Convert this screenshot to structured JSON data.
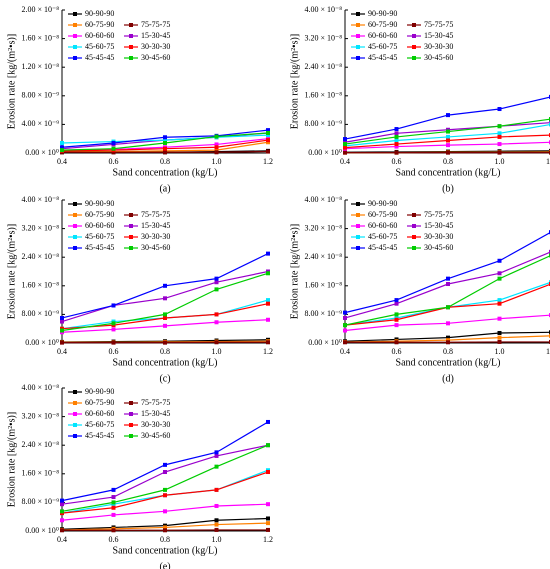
{
  "chart_data": [
    {
      "type": "line",
      "panel_label": "(a)",
      "xlabel": "Sand concentration (kg/L)",
      "ylabel": "Erosion rate [kg/(m²•s)]",
      "legend": "upper left",
      "x": [
        0.4,
        0.6,
        0.8,
        {
          "value": 1,
          "label": "1.0"
        },
        1.2
      ],
      "xlim": [
        0.4,
        1.2
      ],
      "xticks": [
        0.4,
        0.6,
        0.8,
        {
          "value": 1,
          "label": "1.0"
        },
        1.2
      ],
      "ylim": [
        0,
        2e-08
      ],
      "yticks": [
        {
          "value": 0,
          "label": "0.00 × 10⁰"
        },
        {
          "value": 4e-09,
          "label": "4.00 × 10⁻⁹"
        },
        {
          "value": 8e-09,
          "label": "8.00 × 10⁻⁹"
        },
        {
          "value": 1.2e-08,
          "label": "1.20 × 10⁻⁸"
        },
        {
          "value": 1.6e-08,
          "label": "1.60 × 10⁻⁸"
        },
        {
          "value": 2e-08,
          "label": "2.00 × 10⁻⁸"
        }
      ],
      "series": [
        {
          "name": "90-90-90",
          "color": "#000000",
          "values": [
            1e-10,
            1e-10,
            1e-10,
            2e-10,
            3e-10
          ]
        },
        {
          "name": "60-75-90",
          "color": "#ff8000",
          "values": [
            2e-10,
            2e-10,
            3e-10,
            4e-10,
            1.5e-09
          ]
        },
        {
          "name": "75-75-75",
          "color": "#800000",
          "values": [
            1e-10,
            1e-10,
            1e-10,
            1e-10,
            2e-10
          ]
        },
        {
          "name": "60-60-60",
          "color": "#ff00ff",
          "values": [
            4e-10,
            5e-10,
            8e-10,
            1.2e-09,
            2e-09
          ]
        },
        {
          "name": "15-30-45",
          "color": "#9900cc",
          "values": [
            6e-10,
            1.2e-09,
            1.8e-09,
            2.2e-09,
            2.8e-09
          ]
        },
        {
          "name": "45-60-75",
          "color": "#00e5ff",
          "values": [
            1.4e-09,
            1.6e-09,
            1.8e-09,
            2.2e-09,
            2.5e-09
          ]
        },
        {
          "name": "30-30-30",
          "color": "#ff0000",
          "values": [
            3e-10,
            4e-10,
            6e-10,
            8e-10,
            1.8e-09
          ]
        },
        {
          "name": "45-45-45",
          "color": "#0000ff",
          "values": [
            8e-10,
            1.4e-09,
            2.2e-09,
            2.4e-09,
            3.2e-09
          ]
        },
        {
          "name": "30-45-60",
          "color": "#00cc00",
          "values": [
            4e-10,
            6e-10,
            1.4e-09,
            2.3e-09,
            2.8e-09
          ]
        }
      ]
    },
    {
      "type": "line",
      "panel_label": "(b)",
      "xlabel": "Sand concentration (kg/L)",
      "ylabel": "Erosion rate [kg/(m²•s)]",
      "legend": "upper left",
      "x": [
        0.4,
        0.6,
        0.8,
        {
          "value": 1,
          "label": "1.0"
        },
        1.2
      ],
      "xlim": [
        0.4,
        1.2
      ],
      "xticks": [
        0.4,
        0.6,
        0.8,
        {
          "value": 1,
          "label": "1.0"
        },
        1.2
      ],
      "ylim": [
        0,
        4e-08
      ],
      "yticks": [
        {
          "value": 0,
          "label": "0.00 × 10⁰"
        },
        {
          "value": 8e-09,
          "label": "8.00 × 10⁻⁹"
        },
        {
          "value": 1.6e-08,
          "label": "1.60 × 10⁻⁸"
        },
        {
          "value": 2.4e-08,
          "label": "2.40 × 10⁻⁸"
        },
        {
          "value": 3.2e-08,
          "label": "3.20 × 10⁻⁸"
        },
        {
          "value": 4e-08,
          "label": "4.00 × 10⁻⁸"
        }
      ],
      "series": [
        {
          "name": "90-90-90",
          "color": "#000000",
          "values": [
            2e-10,
            3e-10,
            4e-10,
            5e-10,
            6e-10
          ]
        },
        {
          "name": "60-75-90",
          "color": "#ff8000",
          "values": [
            1e-10,
            1e-10,
            2e-10,
            2e-10,
            3e-10
          ]
        },
        {
          "name": "75-75-75",
          "color": "#800000",
          "values": [
            1e-10,
            1e-10,
            1e-10,
            1e-10,
            1e-10
          ]
        },
        {
          "name": "60-60-60",
          "color": "#ff00ff",
          "values": [
            1.2e-09,
            1.8e-09,
            2.2e-09,
            2.5e-09,
            3e-09
          ]
        },
        {
          "name": "15-30-45",
          "color": "#9900cc",
          "values": [
            3e-09,
            5.5e-09,
            6.5e-09,
            7.5e-09,
            8.5e-09
          ]
        },
        {
          "name": "45-60-75",
          "color": "#00e5ff",
          "values": [
            2e-09,
            3.5e-09,
            4.5e-09,
            5.5e-09,
            8e-09
          ]
        },
        {
          "name": "30-30-30",
          "color": "#ff0000",
          "values": [
            1.5e-09,
            2.5e-09,
            3.5e-09,
            4.5e-09,
            5e-09
          ]
        },
        {
          "name": "45-45-45",
          "color": "#0000ff",
          "values": [
            3.9e-09,
            6.7e-09,
            1.06e-08,
            1.23e-08,
            1.57e-08
          ]
        },
        {
          "name": "30-45-60",
          "color": "#00cc00",
          "values": [
            2.5e-09,
            4.5e-09,
            6e-09,
            7.5e-09,
            9.5e-09
          ]
        }
      ]
    },
    {
      "type": "line",
      "panel_label": "(c)",
      "xlabel": "Sand concentration (kg/L)",
      "ylabel": "Erosion rate [kg/(m²•s)]",
      "legend": "upper left",
      "x": [
        0.4,
        0.6,
        0.8,
        {
          "value": 1,
          "label": "1.0"
        },
        1.2
      ],
      "xlim": [
        0.4,
        1.2
      ],
      "xticks": [
        0.4,
        0.6,
        0.8,
        {
          "value": 1,
          "label": "1.0"
        },
        1.2
      ],
      "ylim": [
        0,
        4e-08
      ],
      "yticks": [
        {
          "value": 0,
          "label": "0.00 × 10⁰"
        },
        {
          "value": 8e-09,
          "label": "8.00 × 10⁻⁹"
        },
        {
          "value": 1.6e-08,
          "label": "1.60 × 10⁻⁸"
        },
        {
          "value": 2.4e-08,
          "label": "2.40 × 10⁻⁸"
        },
        {
          "value": 3.2e-08,
          "label": "3.20 × 10⁻⁸"
        },
        {
          "value": 4e-08,
          "label": "4.00 × 10⁻⁸"
        }
      ],
      "series": [
        {
          "name": "90-90-90",
          "color": "#000000",
          "values": [
            3e-10,
            4e-10,
            5e-10,
            7e-10,
            9e-10
          ]
        },
        {
          "name": "60-75-90",
          "color": "#ff8000",
          "values": [
            2e-10,
            2e-10,
            3e-10,
            4e-10,
            5e-10
          ]
        },
        {
          "name": "75-75-75",
          "color": "#800000",
          "values": [
            1e-10,
            1e-10,
            1e-10,
            2e-10,
            2e-10
          ]
        },
        {
          "name": "60-60-60",
          "color": "#ff00ff",
          "values": [
            3e-09,
            3.8e-09,
            4.8e-09,
            5.8e-09,
            6.5e-09
          ]
        },
        {
          "name": "15-30-45",
          "color": "#9900cc",
          "values": [
            6e-09,
            1.05e-08,
            1.25e-08,
            1.7e-08,
            2e-08
          ]
        },
        {
          "name": "45-60-75",
          "color": "#00e5ff",
          "values": [
            4e-09,
            6e-09,
            7e-09,
            8e-09,
            1.2e-08
          ]
        },
        {
          "name": "30-30-30",
          "color": "#ff0000",
          "values": [
            4e-09,
            5e-09,
            7e-09,
            8e-09,
            1.1e-08
          ]
        },
        {
          "name": "45-45-45",
          "color": "#0000ff",
          "values": [
            7e-09,
            1.05e-08,
            1.6e-08,
            1.8e-08,
            2.5e-08
          ]
        },
        {
          "name": "30-45-60",
          "color": "#00cc00",
          "values": [
            3.5e-09,
            5.5e-09,
            8e-09,
            1.5e-08,
            1.95e-08
          ]
        }
      ]
    },
    {
      "type": "line",
      "panel_label": "(d)",
      "xlabel": "Sand concentration (kg/L)",
      "ylabel": "Erosion rate [kg/(m²•s)]",
      "legend": "upper left",
      "x": [
        0.4,
        0.6,
        0.8,
        {
          "value": 1,
          "label": "1.0"
        },
        1.2
      ],
      "xlim": [
        0.4,
        1.2
      ],
      "xticks": [
        0.4,
        0.6,
        0.8,
        {
          "value": 1,
          "label": "1.0"
        },
        1.2
      ],
      "ylim": [
        0,
        4e-08
      ],
      "yticks": [
        {
          "value": 0,
          "label": "0.00 × 10⁰"
        },
        {
          "value": 8e-09,
          "label": "8.00 × 10⁻⁹"
        },
        {
          "value": 1.6e-08,
          "label": "1.60 × 10⁻⁸"
        },
        {
          "value": 2.4e-08,
          "label": "2.40 × 10⁻⁸"
        },
        {
          "value": 3.2e-08,
          "label": "3.20 × 10⁻⁸"
        },
        {
          "value": 4e-08,
          "label": "4.00 × 10⁻⁸"
        }
      ],
      "series": [
        {
          "name": "90-90-90",
          "color": "#000000",
          "values": [
            5e-10,
            1e-09,
            1.5e-09,
            2.8e-09,
            3e-09
          ]
        },
        {
          "name": "60-75-90",
          "color": "#ff8000",
          "values": [
            3e-10,
            5e-10,
            8e-10,
            1.5e-09,
            2e-09
          ]
        },
        {
          "name": "75-75-75",
          "color": "#800000",
          "values": [
            2e-10,
            2e-10,
            2e-10,
            3e-10,
            3e-10
          ]
        },
        {
          "name": "60-60-60",
          "color": "#ff00ff",
          "values": [
            3.5e-09,
            5e-09,
            5.5e-09,
            6.8e-09,
            7.8e-09
          ]
        },
        {
          "name": "15-30-45",
          "color": "#9900cc",
          "values": [
            7e-09,
            1.1e-08,
            1.65e-08,
            1.95e-08,
            2.55e-08
          ]
        },
        {
          "name": "45-60-75",
          "color": "#00e5ff",
          "values": [
            5e-09,
            7e-09,
            1e-08,
            1.2e-08,
            1.7e-08
          ]
        },
        {
          "name": "30-30-30",
          "color": "#ff0000",
          "values": [
            5e-09,
            6.5e-09,
            1e-08,
            1.1e-08,
            1.65e-08
          ]
        },
        {
          "name": "45-45-45",
          "color": "#0000ff",
          "values": [
            8.5e-09,
            1.2e-08,
            1.8e-08,
            2.3e-08,
            3.1e-08
          ]
        },
        {
          "name": "30-45-60",
          "color": "#00cc00",
          "values": [
            5e-09,
            8e-09,
            1e-08,
            1.8e-08,
            2.45e-08
          ]
        }
      ]
    },
    {
      "type": "line",
      "panel_label": "(e)",
      "xlabel": "Sand concentration (kg/L)",
      "ylabel": "Erosion rate [kg/(m²•s)]",
      "legend": "upper left",
      "x": [
        0.4,
        0.6,
        0.8,
        {
          "value": 1,
          "label": "1.0"
        },
        1.2
      ],
      "xlim": [
        0.4,
        1.2
      ],
      "xticks": [
        0.4,
        0.6,
        0.8,
        {
          "value": 1,
          "label": "1.0"
        },
        1.2
      ],
      "ylim": [
        0,
        4e-08
      ],
      "yticks": [
        {
          "value": 0,
          "label": "0.00 × 10⁰"
        },
        {
          "value": 8e-09,
          "label": "8.00 × 10⁻⁹"
        },
        {
          "value": 1.6e-08,
          "label": "1.60 × 10⁻⁸"
        },
        {
          "value": 2.4e-08,
          "label": "2.40 × 10⁻⁸"
        },
        {
          "value": 3.2e-08,
          "label": "3.20 × 10⁻⁸"
        },
        {
          "value": 4e-08,
          "label": "4.00 × 10⁻⁸"
        }
      ],
      "series": [
        {
          "name": "90-90-90",
          "color": "#000000",
          "values": [
            5e-10,
            1e-09,
            1.5e-09,
            3e-09,
            3.5e-09
          ]
        },
        {
          "name": "60-75-90",
          "color": "#ff8000",
          "values": [
            3e-10,
            6e-10,
            1e-09,
            1.8e-09,
            2.2e-09
          ]
        },
        {
          "name": "75-75-75",
          "color": "#800000",
          "values": [
            2e-10,
            2e-10,
            2e-10,
            3e-10,
            3e-10
          ]
        },
        {
          "name": "60-60-60",
          "color": "#ff00ff",
          "values": [
            3e-09,
            4.5e-09,
            5.5e-09,
            7e-09,
            7.5e-09
          ]
        },
        {
          "name": "15-30-45",
          "color": "#9900cc",
          "values": [
            7.5e-09,
            9.5e-09,
            1.65e-08,
            2.1e-08,
            2.4e-08
          ]
        },
        {
          "name": "45-60-75",
          "color": "#00e5ff",
          "values": [
            5e-09,
            7.5e-09,
            1e-08,
            1.15e-08,
            1.7e-08
          ]
        },
        {
          "name": "30-30-30",
          "color": "#ff0000",
          "values": [
            5e-09,
            6.5e-09,
            1e-08,
            1.15e-08,
            1.65e-08
          ]
        },
        {
          "name": "45-45-45",
          "color": "#0000ff",
          "values": [
            8.5e-09,
            1.15e-08,
            1.85e-08,
            2.2e-08,
            3.05e-08
          ]
        },
        {
          "name": "30-45-60",
          "color": "#00cc00",
          "values": [
            5.5e-09,
            8e-09,
            1.15e-08,
            1.8e-08,
            2.4e-08
          ]
        }
      ]
    }
  ]
}
